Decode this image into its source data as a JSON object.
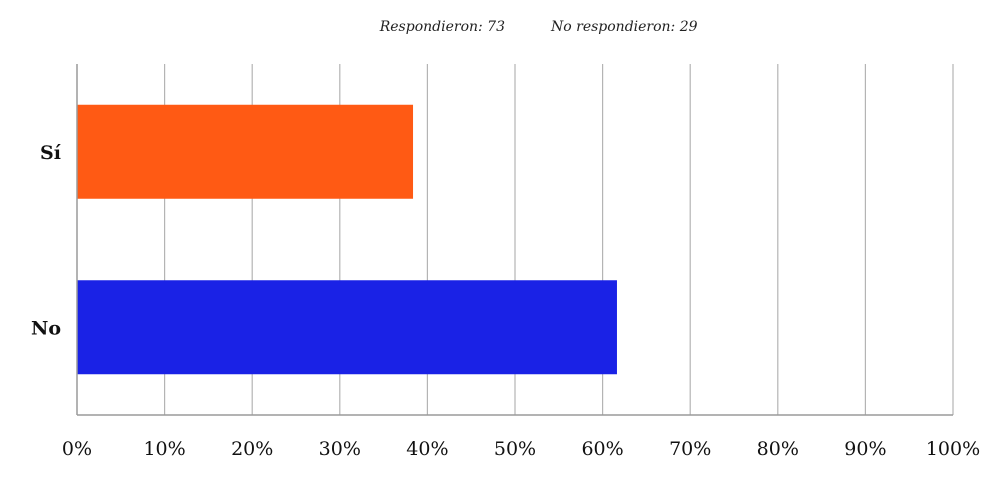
{
  "header": {
    "answered": "Respondieron: 73",
    "skipped": "No respondieron: 29"
  },
  "chart_data": {
    "type": "bar",
    "orientation": "horizontal",
    "categories": [
      "Sí",
      "No"
    ],
    "values": [
      38.36,
      61.64
    ],
    "unit": "%",
    "xlim": [
      0,
      100
    ],
    "xticks": [
      "0%",
      "10%",
      "20%",
      "30%",
      "40%",
      "50%",
      "60%",
      "70%",
      "80%",
      "90%",
      "100%"
    ],
    "grid": "vertical",
    "colors": [
      "#ff5a14",
      "#1a22e6"
    ],
    "title": "",
    "xlabel": "",
    "ylabel": ""
  }
}
